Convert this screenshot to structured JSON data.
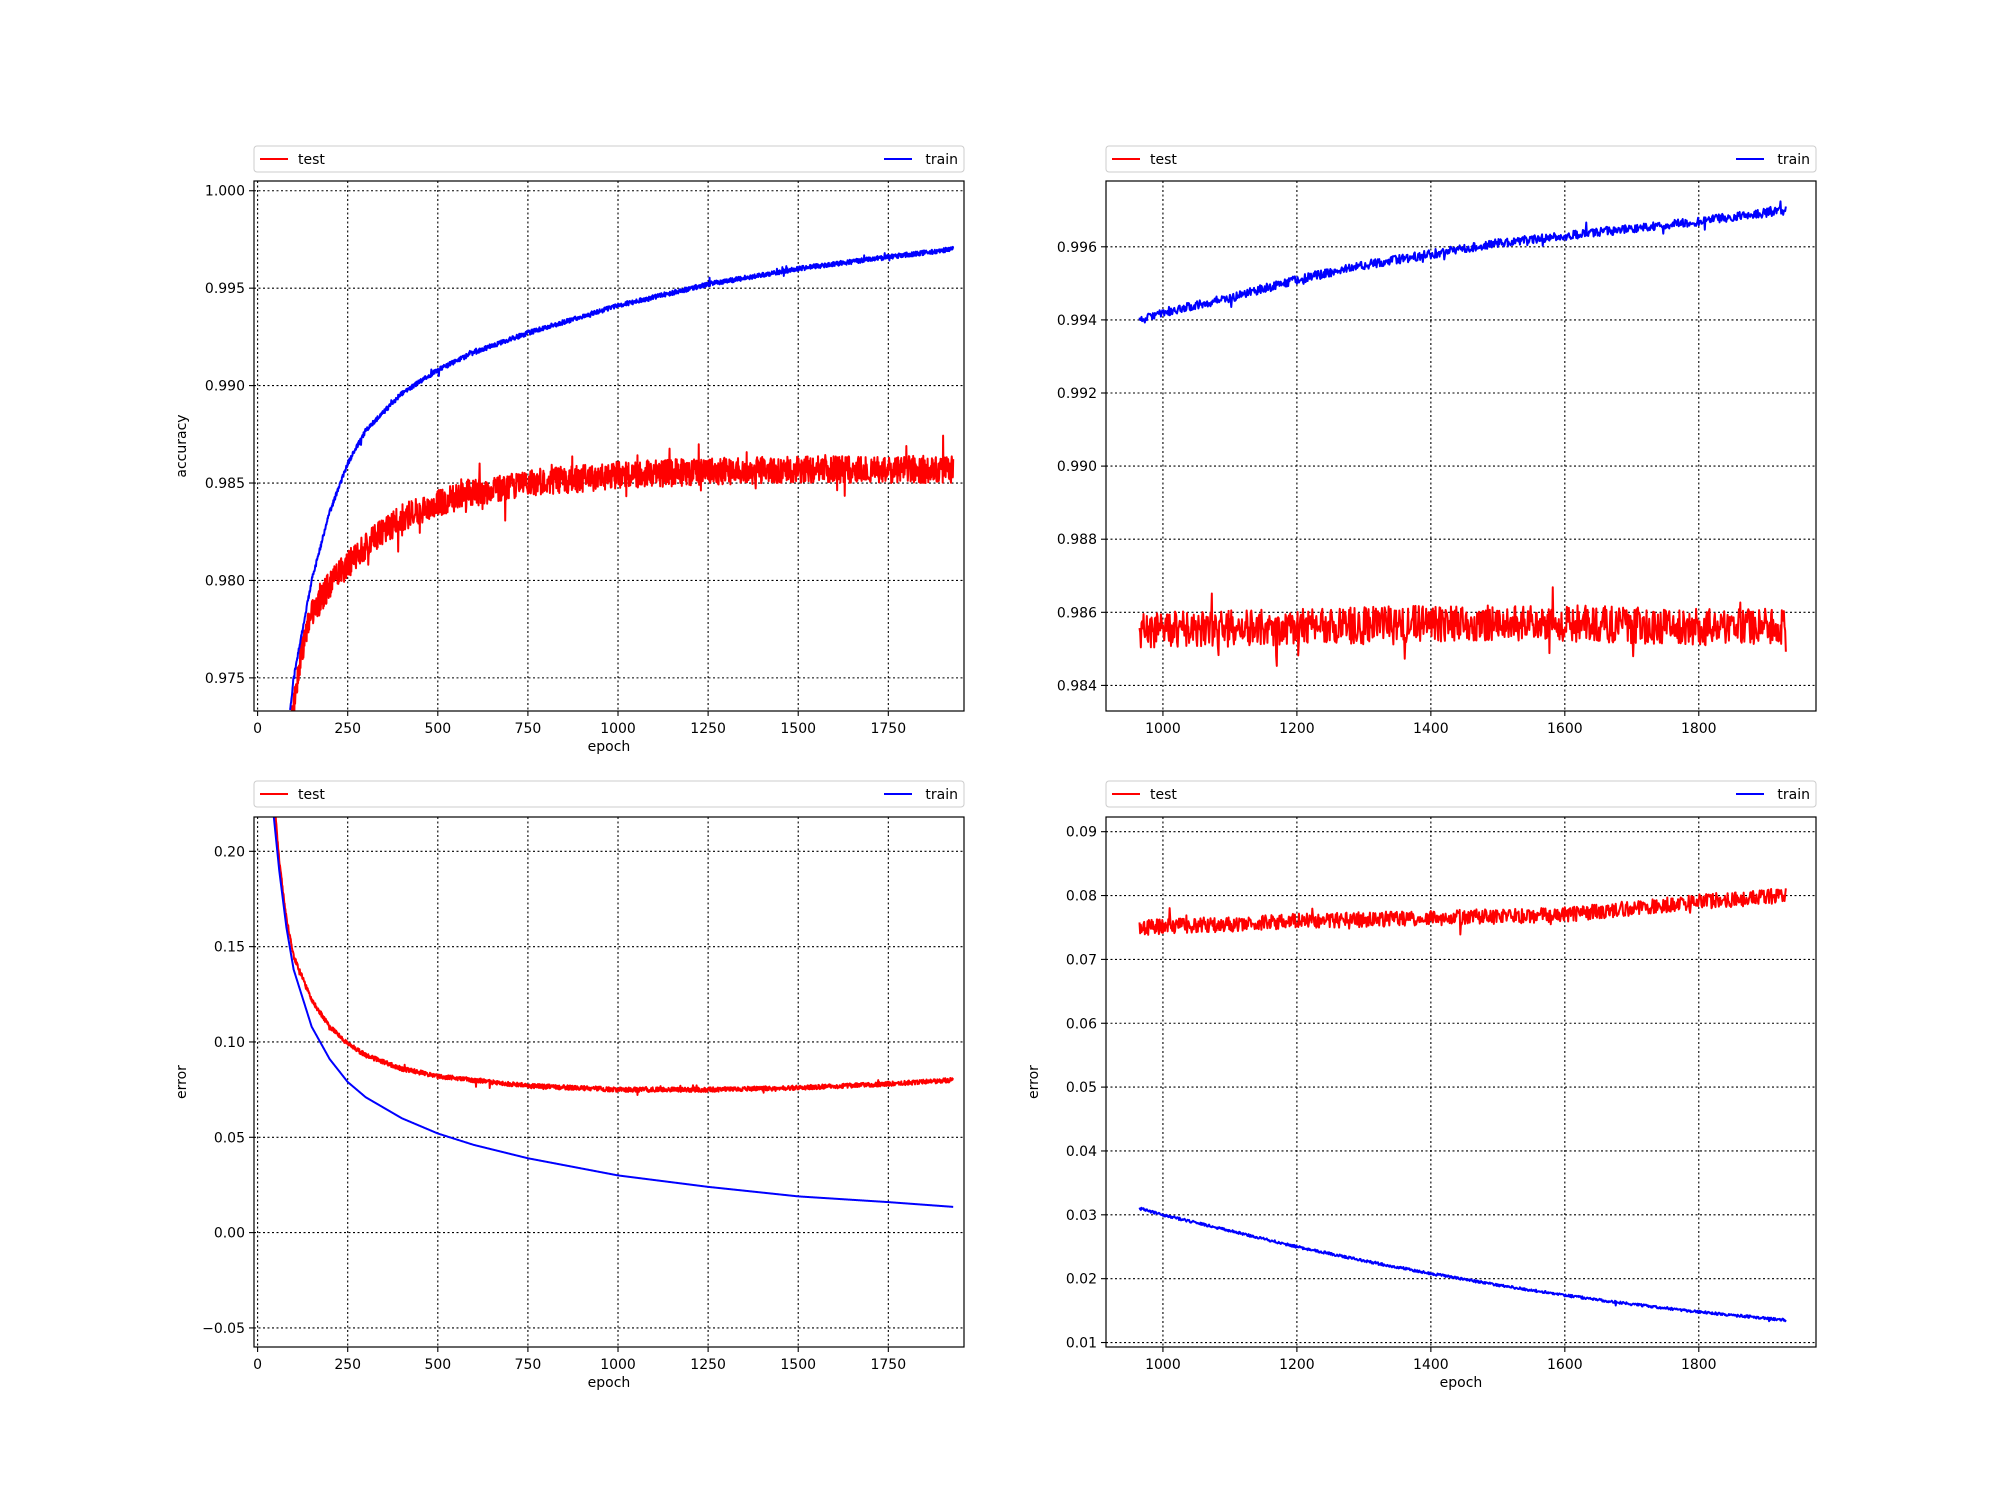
{
  "colors": {
    "test": "#ff0000",
    "train": "#0000ff",
    "grid": "#000000",
    "frame": "#000000",
    "legend_border": "#cccccc"
  },
  "chart_data": [
    {
      "type": "line",
      "xlabel": "epoch",
      "ylabel": "accuracy",
      "xlim": [
        -10,
        1960
      ],
      "ylim": [
        0.9733,
        1.0005
      ],
      "xticks": [
        0,
        250,
        500,
        750,
        1000,
        1250,
        1500,
        1750
      ],
      "xtick_labels": [
        "0",
        "250",
        "500",
        "750",
        "1000",
        "1250",
        "1500",
        "1750"
      ],
      "yticks": [
        0.975,
        0.98,
        0.985,
        0.99,
        0.995,
        1.0
      ],
      "ytick_labels": [
        "0.975",
        "0.980",
        "0.985",
        "0.990",
        "0.995",
        "1.000"
      ],
      "grid": true,
      "legend": "top, above plot",
      "series": [
        {
          "name": "test",
          "color": "#ff0000",
          "noise": 0.0007,
          "x": [
            95,
            100,
            120,
            150,
            200,
            250,
            300,
            400,
            500,
            600,
            750,
            1000,
            1250,
            1500,
            1750,
            1930
          ],
          "y": [
            0.9733,
            0.9736,
            0.9762,
            0.9783,
            0.9798,
            0.9808,
            0.9818,
            0.9832,
            0.984,
            0.9845,
            0.985,
            0.9854,
            0.9856,
            0.9857,
            0.9857,
            0.9857
          ]
        },
        {
          "name": "train",
          "color": "#0000ff",
          "noise": 0.00012,
          "x": [
            90,
            100,
            150,
            200,
            250,
            300,
            400,
            500,
            600,
            750,
            1000,
            1250,
            1500,
            1750,
            1930
          ],
          "y": [
            0.9733,
            0.975,
            0.98,
            0.9835,
            0.986,
            0.9877,
            0.9896,
            0.9908,
            0.9917,
            0.9927,
            0.9941,
            0.9952,
            0.996,
            0.9966,
            0.997
          ]
        }
      ]
    },
    {
      "type": "line",
      "xlabel": "",
      "ylabel": "",
      "xlim": [
        915,
        1975
      ],
      "ylim": [
        0.9833,
        0.9978
      ],
      "xticks": [
        1000,
        1200,
        1400,
        1600,
        1800
      ],
      "xtick_labels": [
        "1000",
        "1200",
        "1400",
        "1600",
        "1800"
      ],
      "yticks": [
        0.984,
        0.986,
        0.988,
        0.99,
        0.992,
        0.994,
        0.996
      ],
      "ytick_labels": [
        "0.984",
        "0.986",
        "0.988",
        "0.990",
        "0.992",
        "0.994",
        "0.996"
      ],
      "grid": true,
      "legend": "top, above plot",
      "series": [
        {
          "name": "test",
          "color": "#ff0000",
          "noise": 0.0005,
          "x": [
            965,
            1200,
            1400,
            1600,
            1800,
            1930
          ],
          "y": [
            0.9855,
            0.9856,
            0.9857,
            0.9857,
            0.9856,
            0.9856
          ]
        },
        {
          "name": "train",
          "color": "#0000ff",
          "noise": 0.00012,
          "x": [
            965,
            1000,
            1100,
            1200,
            1300,
            1400,
            1500,
            1600,
            1700,
            1800,
            1930
          ],
          "y": [
            0.994,
            0.9942,
            0.9946,
            0.9951,
            0.9955,
            0.9958,
            0.9961,
            0.9963,
            0.9965,
            0.9967,
            0.997
          ]
        }
      ]
    },
    {
      "type": "line",
      "xlabel": "epoch",
      "ylabel": "error",
      "xlim": [
        -10,
        1960
      ],
      "ylim": [
        -0.06,
        0.218
      ],
      "xticks": [
        0,
        250,
        500,
        750,
        1000,
        1250,
        1500,
        1750
      ],
      "xtick_labels": [
        "0",
        "250",
        "500",
        "750",
        "1000",
        "1250",
        "1500",
        "1750"
      ],
      "yticks": [
        -0.05,
        0.0,
        0.05,
        0.1,
        0.15,
        0.2
      ],
      "ytick_labels": [
        "−0.05",
        "0.00",
        "0.05",
        "0.10",
        "0.15",
        "0.20"
      ],
      "grid": true,
      "legend": "top, above plot",
      "series": [
        {
          "name": "test",
          "color": "#ff0000",
          "noise": 0.0012,
          "x": [
            50,
            60,
            80,
            100,
            150,
            200,
            250,
            300,
            400,
            500,
            750,
            1000,
            1250,
            1500,
            1750,
            1930
          ],
          "y": [
            0.218,
            0.195,
            0.165,
            0.145,
            0.122,
            0.108,
            0.099,
            0.093,
            0.086,
            0.082,
            0.077,
            0.075,
            0.075,
            0.076,
            0.078,
            0.08
          ]
        },
        {
          "name": "train",
          "color": "#0000ff",
          "noise": 0.0,
          "x": [
            45,
            60,
            80,
            100,
            150,
            200,
            250,
            300,
            400,
            500,
            600,
            750,
            1000,
            1250,
            1500,
            1750,
            1930
          ],
          "y": [
            0.218,
            0.19,
            0.16,
            0.138,
            0.108,
            0.091,
            0.079,
            0.071,
            0.06,
            0.052,
            0.046,
            0.039,
            0.03,
            0.024,
            0.019,
            0.016,
            0.0135
          ]
        }
      ]
    },
    {
      "type": "line",
      "xlabel": "epoch",
      "ylabel": "error",
      "xlim": [
        915,
        1975
      ],
      "ylim": [
        0.0093,
        0.0923
      ],
      "xticks": [
        1000,
        1200,
        1400,
        1600,
        1800
      ],
      "xtick_labels": [
        "1000",
        "1200",
        "1400",
        "1600",
        "1800"
      ],
      "yticks": [
        0.01,
        0.02,
        0.03,
        0.04,
        0.05,
        0.06,
        0.07,
        0.08,
        0.09
      ],
      "ytick_labels": [
        "0.01",
        "0.02",
        "0.03",
        "0.04",
        "0.05",
        "0.06",
        "0.07",
        "0.08",
        "0.09"
      ],
      "grid": true,
      "legend": "top, above plot",
      "series": [
        {
          "name": "test",
          "color": "#ff0000",
          "noise": 0.0012,
          "x": [
            965,
            1100,
            1200,
            1400,
            1600,
            1700,
            1800,
            1930
          ],
          "y": [
            0.075,
            0.0755,
            0.076,
            0.0765,
            0.077,
            0.078,
            0.079,
            0.08
          ]
        },
        {
          "name": "train",
          "color": "#0000ff",
          "noise": 0.0002,
          "x": [
            965,
            1000,
            1100,
            1200,
            1300,
            1400,
            1500,
            1600,
            1700,
            1800,
            1930
          ],
          "y": [
            0.031,
            0.03,
            0.0275,
            0.025,
            0.0228,
            0.0208,
            0.019,
            0.0174,
            0.016,
            0.0148,
            0.0135
          ]
        }
      ]
    }
  ]
}
